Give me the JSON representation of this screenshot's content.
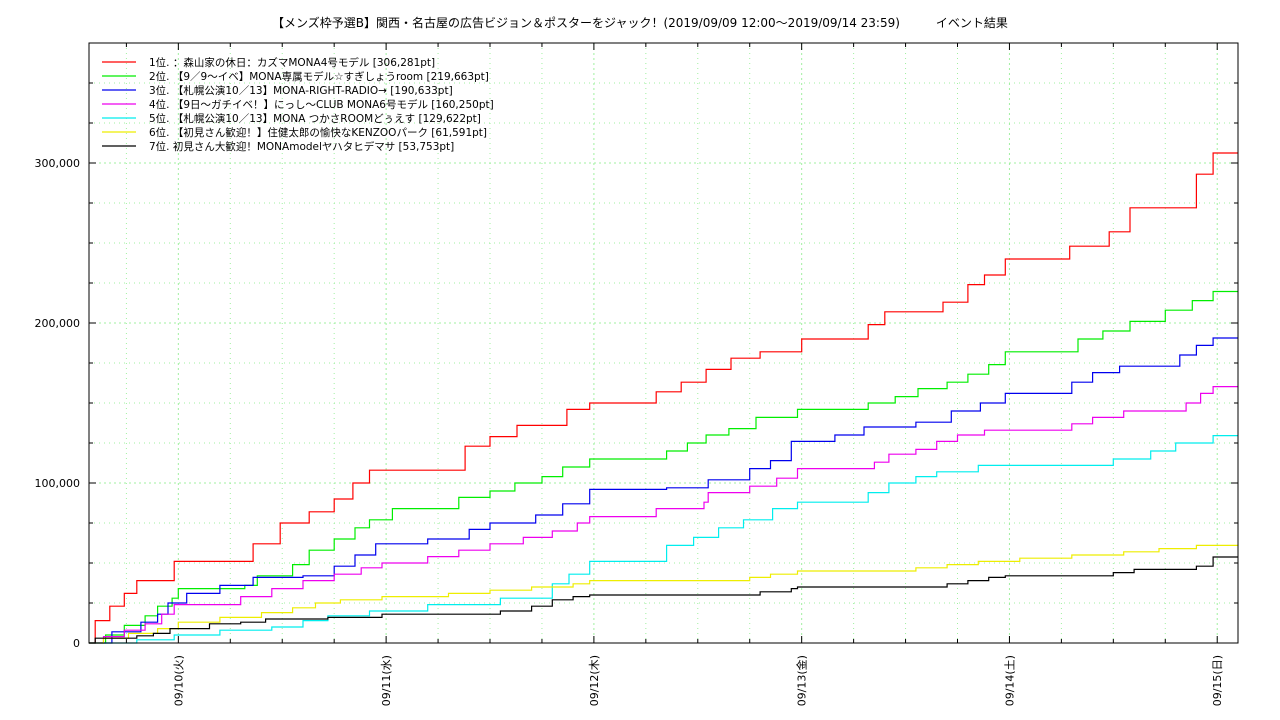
{
  "chart_data": {
    "type": "line",
    "title": "【メンズ枠予選B】関西・名古屋の広告ビジョン＆ポスターをジャック！(2019/09/09 12:00〜2019/09/14 23:59)　　　イベント結果",
    "xlabel": "",
    "ylabel": "",
    "xlim": [
      -0.43,
      5.1
    ],
    "ylim": [
      0,
      375000
    ],
    "x_tick_labels": [
      "09/10(火)",
      "09/11(水)",
      "09/12(木)",
      "09/13(金)",
      "09/14(土)",
      "09/15(日)"
    ],
    "y_tick_values": [
      0,
      100000,
      200000,
      300000
    ],
    "y_tick_labels": [
      "0",
      "100,000",
      "200,000",
      "300,000"
    ],
    "grid": true,
    "legend_position": "top-left",
    "series": [
      {
        "name": "1位. ：森山家の休日：カズマMONA4号モデル [306,281pt]",
        "color": "#ff0000",
        "points": [
          [
            -0.43,
            0
          ],
          [
            -0.4,
            14000
          ],
          [
            -0.33,
            23000
          ],
          [
            -0.26,
            31000
          ],
          [
            -0.2,
            39000
          ],
          [
            -0.02,
            51000
          ],
          [
            0.36,
            62000
          ],
          [
            0.49,
            75000
          ],
          [
            0.63,
            82000
          ],
          [
            0.75,
            90000
          ],
          [
            0.84,
            100000
          ],
          [
            0.92,
            108000
          ],
          [
            1.38,
            123000
          ],
          [
            1.5,
            129000
          ],
          [
            1.63,
            136000
          ],
          [
            1.87,
            146000
          ],
          [
            1.98,
            150000
          ],
          [
            2.3,
            157000
          ],
          [
            2.42,
            163000
          ],
          [
            2.54,
            171000
          ],
          [
            2.66,
            178000
          ],
          [
            2.8,
            182000
          ],
          [
            3.0,
            190000
          ],
          [
            3.32,
            199000
          ],
          [
            3.4,
            207000
          ],
          [
            3.68,
            213000
          ],
          [
            3.8,
            224000
          ],
          [
            3.88,
            230000
          ],
          [
            3.98,
            240000
          ],
          [
            4.29,
            248000
          ],
          [
            4.48,
            257000
          ],
          [
            4.58,
            272000
          ],
          [
            4.9,
            293000
          ],
          [
            4.98,
            306281
          ],
          [
            5.1,
            306281
          ]
        ]
      },
      {
        "name": "2位. 【9／9〜イベ】MONA専属モデル☆すぎしょうroom [219,663pt]",
        "color": "#00ee00",
        "points": [
          [
            -0.43,
            0
          ],
          [
            -0.35,
            5000
          ],
          [
            -0.26,
            11000
          ],
          [
            -0.16,
            17000
          ],
          [
            -0.1,
            23000
          ],
          [
            -0.03,
            28000
          ],
          [
            0.0,
            34000
          ],
          [
            0.32,
            36000
          ],
          [
            0.38,
            42000
          ],
          [
            0.55,
            49000
          ],
          [
            0.63,
            58000
          ],
          [
            0.75,
            65000
          ],
          [
            0.85,
            72000
          ],
          [
            0.92,
            77000
          ],
          [
            1.03,
            84000
          ],
          [
            1.35,
            91000
          ],
          [
            1.5,
            95000
          ],
          [
            1.62,
            100000
          ],
          [
            1.75,
            104000
          ],
          [
            1.85,
            110000
          ],
          [
            1.98,
            115000
          ],
          [
            2.35,
            120000
          ],
          [
            2.45,
            125000
          ],
          [
            2.54,
            130000
          ],
          [
            2.65,
            134000
          ],
          [
            2.78,
            141000
          ],
          [
            2.98,
            146000
          ],
          [
            3.32,
            150000
          ],
          [
            3.45,
            154000
          ],
          [
            3.56,
            159000
          ],
          [
            3.7,
            163000
          ],
          [
            3.8,
            168000
          ],
          [
            3.9,
            174000
          ],
          [
            3.98,
            182000
          ],
          [
            4.33,
            190000
          ],
          [
            4.45,
            195000
          ],
          [
            4.58,
            201000
          ],
          [
            4.75,
            208000
          ],
          [
            4.88,
            214000
          ],
          [
            4.98,
            219663
          ],
          [
            5.1,
            219663
          ]
        ]
      },
      {
        "name": "3位. 【札幌公演10／13】MONA-RIGHT-RADIO→ [190,633pt]",
        "color": "#0000ee",
        "points": [
          [
            -0.43,
            0
          ],
          [
            -0.32,
            7000
          ],
          [
            -0.18,
            13000
          ],
          [
            -0.1,
            18000
          ],
          [
            -0.05,
            25000
          ],
          [
            0.04,
            31000
          ],
          [
            0.2,
            36000
          ],
          [
            0.36,
            41000
          ],
          [
            0.6,
            42000
          ],
          [
            0.75,
            48000
          ],
          [
            0.85,
            55000
          ],
          [
            0.95,
            62000
          ],
          [
            1.2,
            65000
          ],
          [
            1.4,
            71000
          ],
          [
            1.5,
            75000
          ],
          [
            1.72,
            80000
          ],
          [
            1.85,
            87000
          ],
          [
            1.98,
            96000
          ],
          [
            2.35,
            97000
          ],
          [
            2.55,
            102000
          ],
          [
            2.75,
            109000
          ],
          [
            2.85,
            114000
          ],
          [
            2.95,
            126000
          ],
          [
            3.16,
            130000
          ],
          [
            3.3,
            135000
          ],
          [
            3.55,
            138000
          ],
          [
            3.72,
            145000
          ],
          [
            3.86,
            150000
          ],
          [
            3.98,
            156000
          ],
          [
            4.3,
            163000
          ],
          [
            4.4,
            169000
          ],
          [
            4.53,
            173000
          ],
          [
            4.82,
            180000
          ],
          [
            4.9,
            186000
          ],
          [
            4.98,
            190633
          ],
          [
            5.1,
            190633
          ]
        ]
      },
      {
        "name": "4位. 【9日〜ガチイベ！】にっし〜CLUB MONA6号モデル [160,250pt]",
        "color": "#ee00ee",
        "points": [
          [
            -0.43,
            0
          ],
          [
            -0.36,
            4000
          ],
          [
            -0.26,
            8000
          ],
          [
            -0.16,
            12000
          ],
          [
            -0.08,
            18000
          ],
          [
            -0.02,
            24000
          ],
          [
            0.3,
            29000
          ],
          [
            0.45,
            34000
          ],
          [
            0.6,
            39000
          ],
          [
            0.75,
            43000
          ],
          [
            0.88,
            47000
          ],
          [
            0.98,
            50000
          ],
          [
            1.2,
            54000
          ],
          [
            1.35,
            58000
          ],
          [
            1.5,
            62000
          ],
          [
            1.66,
            66000
          ],
          [
            1.8,
            70000
          ],
          [
            1.92,
            75000
          ],
          [
            1.98,
            79000
          ],
          [
            2.3,
            84000
          ],
          [
            2.53,
            88000
          ],
          [
            2.55,
            94000
          ],
          [
            2.75,
            98000
          ],
          [
            2.88,
            103000
          ],
          [
            2.98,
            109000
          ],
          [
            3.35,
            113000
          ],
          [
            3.42,
            118000
          ],
          [
            3.55,
            121000
          ],
          [
            3.65,
            126000
          ],
          [
            3.75,
            130000
          ],
          [
            3.88,
            133000
          ],
          [
            4.3,
            137000
          ],
          [
            4.4,
            141000
          ],
          [
            4.55,
            145000
          ],
          [
            4.85,
            150000
          ],
          [
            4.92,
            156000
          ],
          [
            4.98,
            160250
          ],
          [
            5.1,
            160250
          ]
        ]
      },
      {
        "name": "5位. 【札幌公演10／13】MONA つかさROOMどぅえす [129,622pt]",
        "color": "#00eeee",
        "points": [
          [
            -0.43,
            0
          ],
          [
            -0.2,
            2000
          ],
          [
            -0.02,
            5000
          ],
          [
            0.2,
            8000
          ],
          [
            0.45,
            10000
          ],
          [
            0.6,
            14000
          ],
          [
            0.72,
            17000
          ],
          [
            0.92,
            20000
          ],
          [
            1.2,
            24000
          ],
          [
            1.55,
            28000
          ],
          [
            1.8,
            37000
          ],
          [
            1.88,
            43000
          ],
          [
            1.98,
            51000
          ],
          [
            2.35,
            61000
          ],
          [
            2.48,
            66000
          ],
          [
            2.6,
            72000
          ],
          [
            2.72,
            77000
          ],
          [
            2.86,
            84000
          ],
          [
            2.98,
            88000
          ],
          [
            3.32,
            94000
          ],
          [
            3.42,
            100000
          ],
          [
            3.55,
            104000
          ],
          [
            3.65,
            107000
          ],
          [
            3.85,
            111000
          ],
          [
            4.5,
            115000
          ],
          [
            4.68,
            120000
          ],
          [
            4.8,
            125000
          ],
          [
            4.98,
            129622
          ],
          [
            5.1,
            129622
          ]
        ]
      },
      {
        "name": "6位. 【初見さん歓迎！】住健太郎の愉快なKENZOOパーク [61,591pt]",
        "color": "#eeee00",
        "points": [
          [
            -0.43,
            0
          ],
          [
            -0.36,
            3000
          ],
          [
            -0.24,
            6000
          ],
          [
            -0.1,
            9000
          ],
          [
            0.0,
            13000
          ],
          [
            0.2,
            16000
          ],
          [
            0.4,
            19000
          ],
          [
            0.55,
            22000
          ],
          [
            0.66,
            25000
          ],
          [
            0.78,
            27000
          ],
          [
            0.98,
            29000
          ],
          [
            1.3,
            31000
          ],
          [
            1.5,
            33000
          ],
          [
            1.7,
            35000
          ],
          [
            1.9,
            37000
          ],
          [
            1.98,
            39000
          ],
          [
            2.75,
            41000
          ],
          [
            2.85,
            43000
          ],
          [
            2.98,
            45000
          ],
          [
            3.55,
            47000
          ],
          [
            3.7,
            49000
          ],
          [
            3.85,
            51000
          ],
          [
            4.05,
            53000
          ],
          [
            4.3,
            55000
          ],
          [
            4.55,
            57000
          ],
          [
            4.72,
            59000
          ],
          [
            4.9,
            61000
          ],
          [
            5.1,
            61591
          ]
        ]
      },
      {
        "name": "7位. 初見さん大歓迎！MONAmodelヤハタヒデマサ [53,753pt]",
        "color": "#000000",
        "points": [
          [
            -0.43,
            0
          ],
          [
            -0.4,
            3000
          ],
          [
            -0.2,
            4500
          ],
          [
            -0.12,
            6000
          ],
          [
            -0.04,
            9000
          ],
          [
            0.15,
            12000
          ],
          [
            0.3,
            13000
          ],
          [
            0.42,
            15000
          ],
          [
            0.72,
            16000
          ],
          [
            0.98,
            18000
          ],
          [
            1.55,
            20000
          ],
          [
            1.7,
            23000
          ],
          [
            1.8,
            27000
          ],
          [
            1.9,
            29000
          ],
          [
            1.98,
            30000
          ],
          [
            2.8,
            32000
          ],
          [
            2.95,
            34000
          ],
          [
            2.98,
            35000
          ],
          [
            3.7,
            37000
          ],
          [
            3.8,
            39000
          ],
          [
            3.9,
            41000
          ],
          [
            3.98,
            42000
          ],
          [
            4.5,
            44000
          ],
          [
            4.6,
            46000
          ],
          [
            4.9,
            48000
          ],
          [
            4.98,
            53753
          ],
          [
            5.1,
            53753
          ]
        ]
      }
    ]
  }
}
